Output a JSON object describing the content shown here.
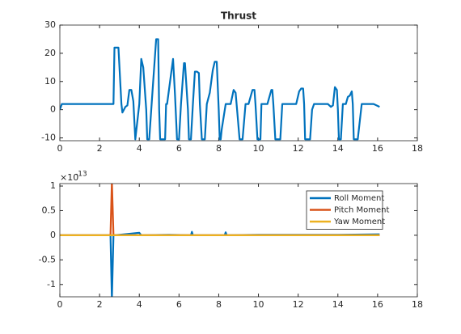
{
  "chart_data": [
    {
      "type": "line",
      "title": "Thrust",
      "xlim": [
        0,
        18
      ],
      "xticks": [
        0,
        2,
        4,
        6,
        8,
        10,
        12,
        14,
        16,
        18
      ],
      "ylim": [
        -11,
        30
      ],
      "yticks": [
        -10,
        0,
        10,
        20,
        30
      ],
      "grid": false,
      "x": [
        0,
        0.1,
        2.7,
        2.75,
        2.95,
        3.1,
        3.15,
        3.3,
        3.4,
        3.5,
        3.6,
        3.7,
        3.8,
        4.0,
        4.1,
        4.2,
        4.35,
        4.4,
        4.5,
        4.7,
        4.85,
        4.95,
        5.0,
        5.05,
        5.3,
        5.35,
        5.4,
        5.55,
        5.7,
        5.8,
        5.9,
        6.0,
        6.1,
        6.25,
        6.3,
        6.45,
        6.5,
        6.6,
        6.7,
        6.8,
        6.9,
        7.0,
        7.05,
        7.15,
        7.3,
        7.4,
        7.55,
        7.7,
        7.8,
        7.9,
        8.0,
        8.05,
        8.1,
        8.15,
        8.35,
        8.6,
        8.75,
        8.85,
        8.9,
        9.05,
        9.2,
        9.35,
        9.5,
        9.7,
        9.8,
        9.85,
        9.95,
        10.1,
        10.15,
        10.45,
        10.65,
        10.7,
        10.75,
        10.85,
        11.1,
        11.2,
        11.9,
        12.05,
        12.15,
        12.25,
        12.3,
        12.35,
        12.6,
        12.7,
        12.8,
        13.5,
        13.65,
        13.75,
        13.85,
        13.95,
        14.0,
        14.05,
        14.15,
        14.25,
        14.4,
        14.5,
        14.6,
        14.7,
        14.75,
        14.8,
        15.0,
        15.2,
        15.8,
        16.1
      ],
      "series": [
        {
          "color": "#0072BD",
          "values": [
            0,
            2,
            2,
            22,
            22,
            2,
            -1,
            1,
            1.5,
            7,
            7,
            3,
            -10.5,
            2,
            18,
            15,
            0,
            -10.5,
            -10.5,
            10,
            25,
            25,
            0,
            -10.5,
            -10.5,
            2,
            2,
            10,
            18,
            5,
            -10.5,
            -10.5,
            2,
            16.5,
            16.5,
            0,
            -10.5,
            -10.5,
            2,
            13.5,
            13.5,
            13,
            2,
            -10.5,
            -10.5,
            2,
            6,
            14,
            17,
            17,
            0,
            -10.5,
            -10.5,
            -7,
            2,
            2,
            7,
            6,
            2,
            -10.5,
            -10.5,
            2,
            2,
            7,
            7,
            2,
            -10.5,
            -10.5,
            2,
            2,
            7,
            7,
            2,
            -10.5,
            -10.5,
            2,
            2,
            6.5,
            7.5,
            7.5,
            2,
            -10.5,
            -10.5,
            0,
            2,
            2,
            1,
            1.5,
            8,
            7,
            0,
            -10.5,
            -10.5,
            2,
            2,
            4.5,
            5,
            6.5,
            2,
            -10.5,
            -10.5,
            2,
            2,
            1
          ]
        }
      ]
    },
    {
      "type": "line",
      "xlim": [
        0,
        18
      ],
      "xticks": [
        0,
        2,
        4,
        6,
        8,
        10,
        12,
        14,
        16,
        18
      ],
      "ylim": [
        -1.25,
        1.05
      ],
      "yticks": [
        -1,
        -0.5,
        0,
        0.5,
        1
      ],
      "grid": false,
      "y_exponent": {
        "base": "×10",
        "power": "-13"
      },
      "legend": "northeast",
      "x": [
        0,
        2.55,
        2.62,
        2.7,
        3.0,
        4.0,
        4.1,
        5.5,
        6.6,
        6.65,
        6.7,
        8.3,
        8.35,
        8.4,
        10,
        12,
        14,
        16.1
      ],
      "series": [
        {
          "name": "Roll Moment",
          "color": "#0072BD",
          "values": [
            0,
            0,
            -1.3,
            0,
            0.01,
            0.05,
            0,
            0.01,
            0,
            0.07,
            0,
            0,
            0.06,
            0,
            0.01,
            0.01,
            0.01,
            0.02
          ]
        },
        {
          "name": "Pitch Moment",
          "color": "#D95319",
          "values": [
            0,
            0,
            1.1,
            0,
            0,
            0,
            0,
            0,
            0,
            0,
            0,
            0,
            0,
            0,
            0,
            0,
            0,
            0
          ]
        },
        {
          "name": "Yaw Moment",
          "color": "#EDB120",
          "values": [
            0,
            0,
            0,
            0,
            0,
            0,
            0,
            0,
            0,
            0,
            0,
            0,
            0,
            0,
            0,
            0,
            0,
            0
          ]
        }
      ]
    }
  ]
}
